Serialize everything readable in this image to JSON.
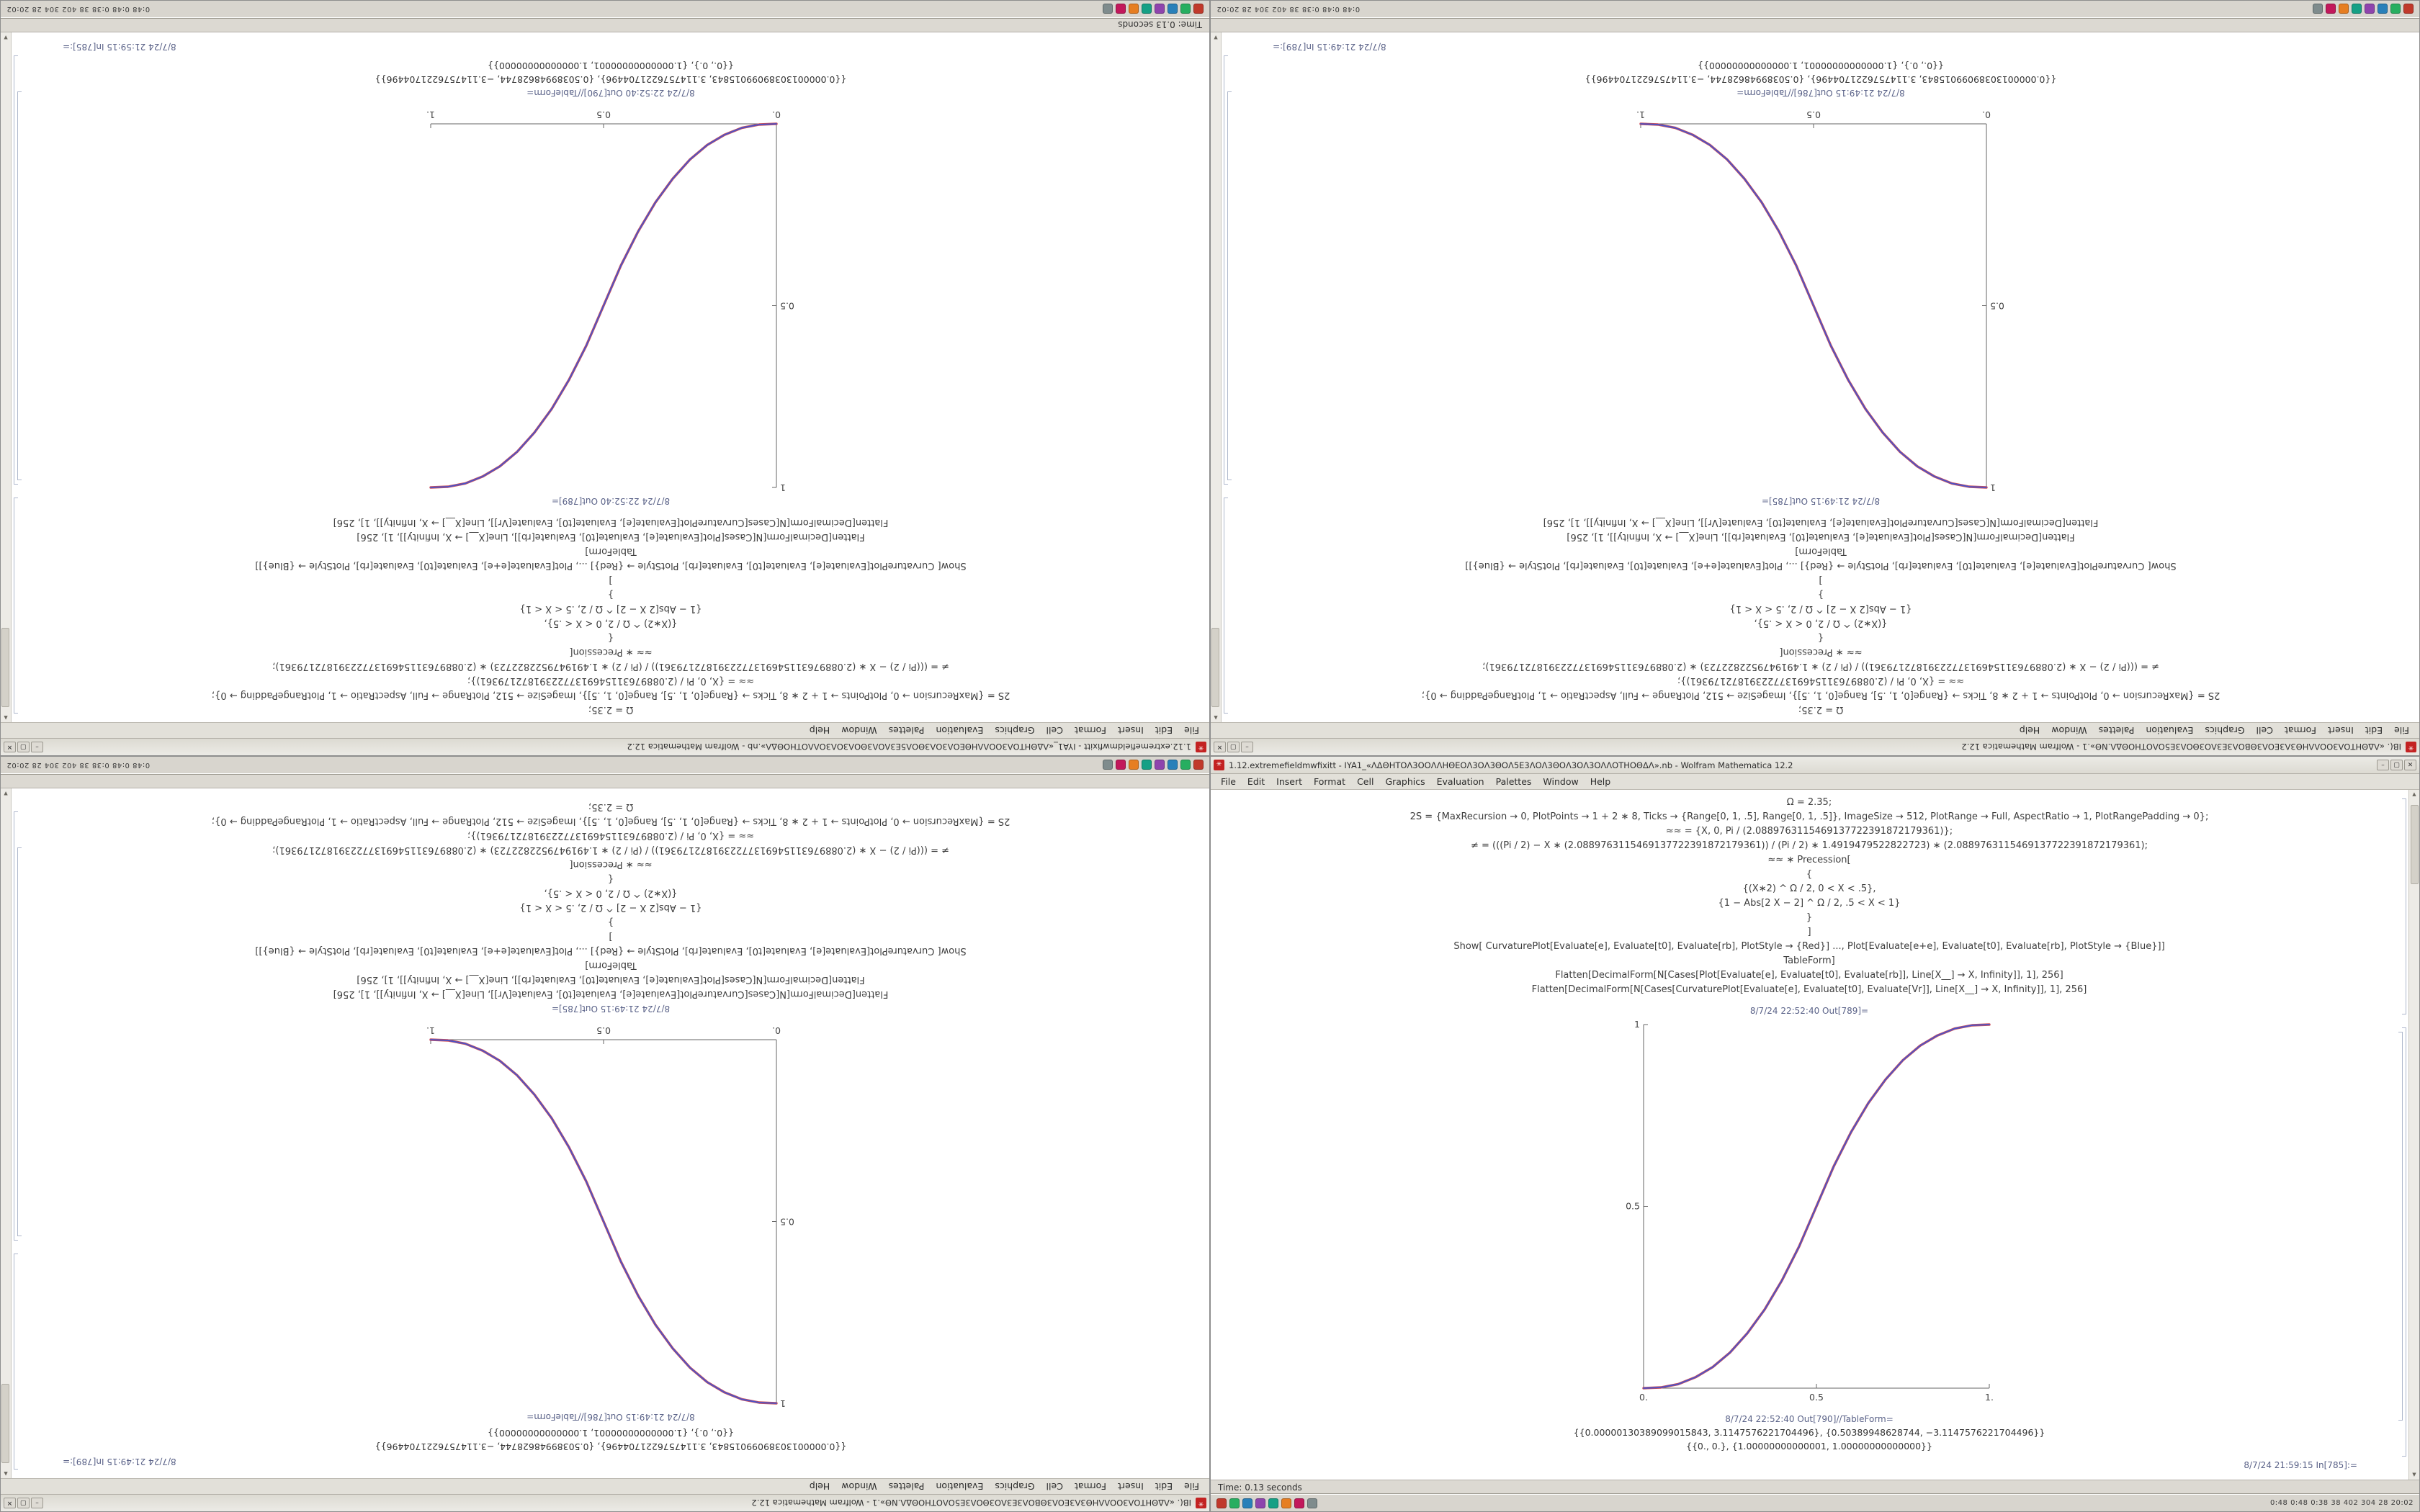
{
  "chrome": {
    "minimize": "–",
    "maximize": "▢",
    "close": "✕",
    "scroll_up": "▲",
    "scroll_down": "▼"
  },
  "icons": {
    "notebook_glyph": "✳"
  },
  "menu": [
    "File",
    "Edit",
    "Insert",
    "Format",
    "Cell",
    "Graphics",
    "Evaluation",
    "Palettes",
    "Window",
    "Help"
  ],
  "code_lines": [
    "Ω = 2.35;",
    "2S = {MaxRecursion → 0, PlotPoints → 1 + 2 ∗ 8, Ticks → {Range[0, 1, .5], Range[0, 1, .5]}, ImageSize → 512, PlotRange → Full, AspectRatio → 1, PlotRangePadding → 0};",
    "≈≈ = {X, 0, Pi / (2.0889763115469137722391872179361)};",
    "≠ = (((Pi / 2) − X ∗ (2.0889763115469137722391872179361)) / (Pi / 2) ∗ 1.4919479522822723) ∗ (2.0889763115469137722391872179361);",
    "≈≈ ∗ Precession[",
    "{",
    "{(X∗2) ^ Ω / 2, 0 < X < .5},",
    "{1 − Abs[2 X − 2] ^ Ω / 2, .5 < X < 1}",
    "}",
    "]",
    "Show[ CurvaturePlot[Evaluate[e], Evaluate[t0], Evaluate[rb], PlotStyle → {Red}] ..., Plot[Evaluate[e+e], Evaluate[t0], Evaluate[rb], PlotStyle → {Blue}]]",
    "TableForm]",
    "Flatten[DecimalForm[N[Cases[Plot[Evaluate[e], Evaluate[t0], Evaluate[rb]], Line[X__] → X, Infinity]], 1], 256]",
    "Flatten[DecimalForm[N[Cases[CurvaturePlot[Evaluate[e], Evaluate[t0], Evaluate[Vr]], Line[X__] → X, Infinity]], 1], 256]"
  ],
  "taskbar": {
    "icon_colors": [
      "#c0392b",
      "#27ae60",
      "#2980b9",
      "#8e44ad",
      "#16a085",
      "#e67e22",
      "#c2185b",
      "#7f8c8d"
    ],
    "tray": "0:48  0:48  0:38  38  402  304  28  20:02"
  },
  "desktopB": {
    "title": "1.12.extremefieldmwfixitt - IYA1_«ΛΔΘΗΤΟΛ3ΟΟΛΛΗΘΕΟΛ3ΟΛ3ΘΟΛ5Ε3ΛΟΛ3ΘΟΛ3ΟΛ3ΟΛΛΟΤΗΟΘΔΛ».nb - Wolfram Mathematica 12.2",
    "status_left": "Time: 0.13 seconds",
    "out_label": "8/7/24 22:52:40 Out[789]=",
    "table_label": "8/7/24 22:52:40 Out[790]//TableForm=",
    "in_label": "8/7/24 21:59:15 In[785]:=",
    "table_rows": [
      "{{0.00000130389099015843, 3.1147576221704496}, {0.50389948628744, −3.1147576221704496}}",
      "{{0., 0.}, {1.00000000000001, 1.00000000000000}}"
    ],
    "plot": {
      "type": "line",
      "direction": "ascending",
      "xlim": [
        0,
        1
      ],
      "ylim": [
        0,
        1
      ],
      "x_ticks": [
        {
          "pos": 0,
          "label": "0."
        },
        {
          "pos": 0.5,
          "label": "0.5"
        },
        {
          "pos": 1,
          "label": "1."
        }
      ],
      "y_ticks": [
        {
          "pos": 0.5,
          "label": "0.5"
        },
        {
          "pos": 1,
          "label": "1"
        }
      ],
      "series": [
        {
          "name": "red",
          "color": "#c94f5c"
        },
        {
          "name": "blue",
          "color": "#4853c9"
        }
      ],
      "points": [
        [
          0,
          0
        ],
        [
          0.05,
          0.002
        ],
        [
          0.1,
          0.011
        ],
        [
          0.15,
          0.03
        ],
        [
          0.2,
          0.058
        ],
        [
          0.25,
          0.098
        ],
        [
          0.3,
          0.151
        ],
        [
          0.35,
          0.216
        ],
        [
          0.4,
          0.296
        ],
        [
          0.45,
          0.39
        ],
        [
          0.5,
          0.5
        ],
        [
          0.55,
          0.61
        ],
        [
          0.6,
          0.704
        ],
        [
          0.65,
          0.784
        ],
        [
          0.7,
          0.849
        ],
        [
          0.75,
          0.902
        ],
        [
          0.8,
          0.942
        ],
        [
          0.85,
          0.97
        ],
        [
          0.9,
          0.989
        ],
        [
          0.95,
          0.998
        ],
        [
          1,
          1
        ]
      ]
    }
  },
  "desktopA": {
    "title": "IB(. «ΛΔΘΗΤΟΛ3ΟΟΛΛΗΘ3Λ3ΕΟΛ3ΘΒΟΛ3Ε3ΛΟ3ΘΟΛ3Ε5ΟΛΟΤΗΟΘΔΛ.ΝΘ».1 - Wolfram Mathematica 12.2",
    "status_left": "",
    "out_label": "8/7/24 21:49:15 Out[785]=",
    "table_label": "8/7/24 21:49:15 Out[786]//TableForm=",
    "in_label": "8/7/24 21:49:15 In[789]:=",
    "table_rows": [
      "{{0.00000130389099015843, 3.1147576221704496}, {0.50389948628744, −3.1147576221704496}}",
      "{{0., 0.}, {1.00000000000001, 1.00000000000000}}"
    ],
    "plot": {
      "type": "line",
      "direction": "descending",
      "xlim": [
        0,
        1
      ],
      "ylim": [
        0,
        1
      ],
      "x_ticks": [
        {
          "pos": 0,
          "label": "0."
        },
        {
          "pos": 0.5,
          "label": "0.5"
        },
        {
          "pos": 1,
          "label": "1."
        }
      ],
      "y_ticks": [
        {
          "pos": 0.5,
          "label": "0.5"
        },
        {
          "pos": 1,
          "label": "1"
        }
      ],
      "series": [
        {
          "name": "red",
          "color": "#c94f5c"
        },
        {
          "name": "blue",
          "color": "#4853c9"
        }
      ],
      "points": [
        [
          0,
          1
        ],
        [
          0.05,
          0.998
        ],
        [
          0.1,
          0.989
        ],
        [
          0.15,
          0.97
        ],
        [
          0.2,
          0.942
        ],
        [
          0.25,
          0.902
        ],
        [
          0.3,
          0.849
        ],
        [
          0.35,
          0.784
        ],
        [
          0.4,
          0.704
        ],
        [
          0.45,
          0.61
        ],
        [
          0.5,
          0.5
        ],
        [
          0.55,
          0.39
        ],
        [
          0.6,
          0.296
        ],
        [
          0.65,
          0.216
        ],
        [
          0.7,
          0.151
        ],
        [
          0.75,
          0.098
        ],
        [
          0.8,
          0.058
        ],
        [
          0.85,
          0.03
        ],
        [
          0.9,
          0.011
        ],
        [
          0.95,
          0.002
        ],
        [
          1,
          0
        ]
      ]
    }
  }
}
